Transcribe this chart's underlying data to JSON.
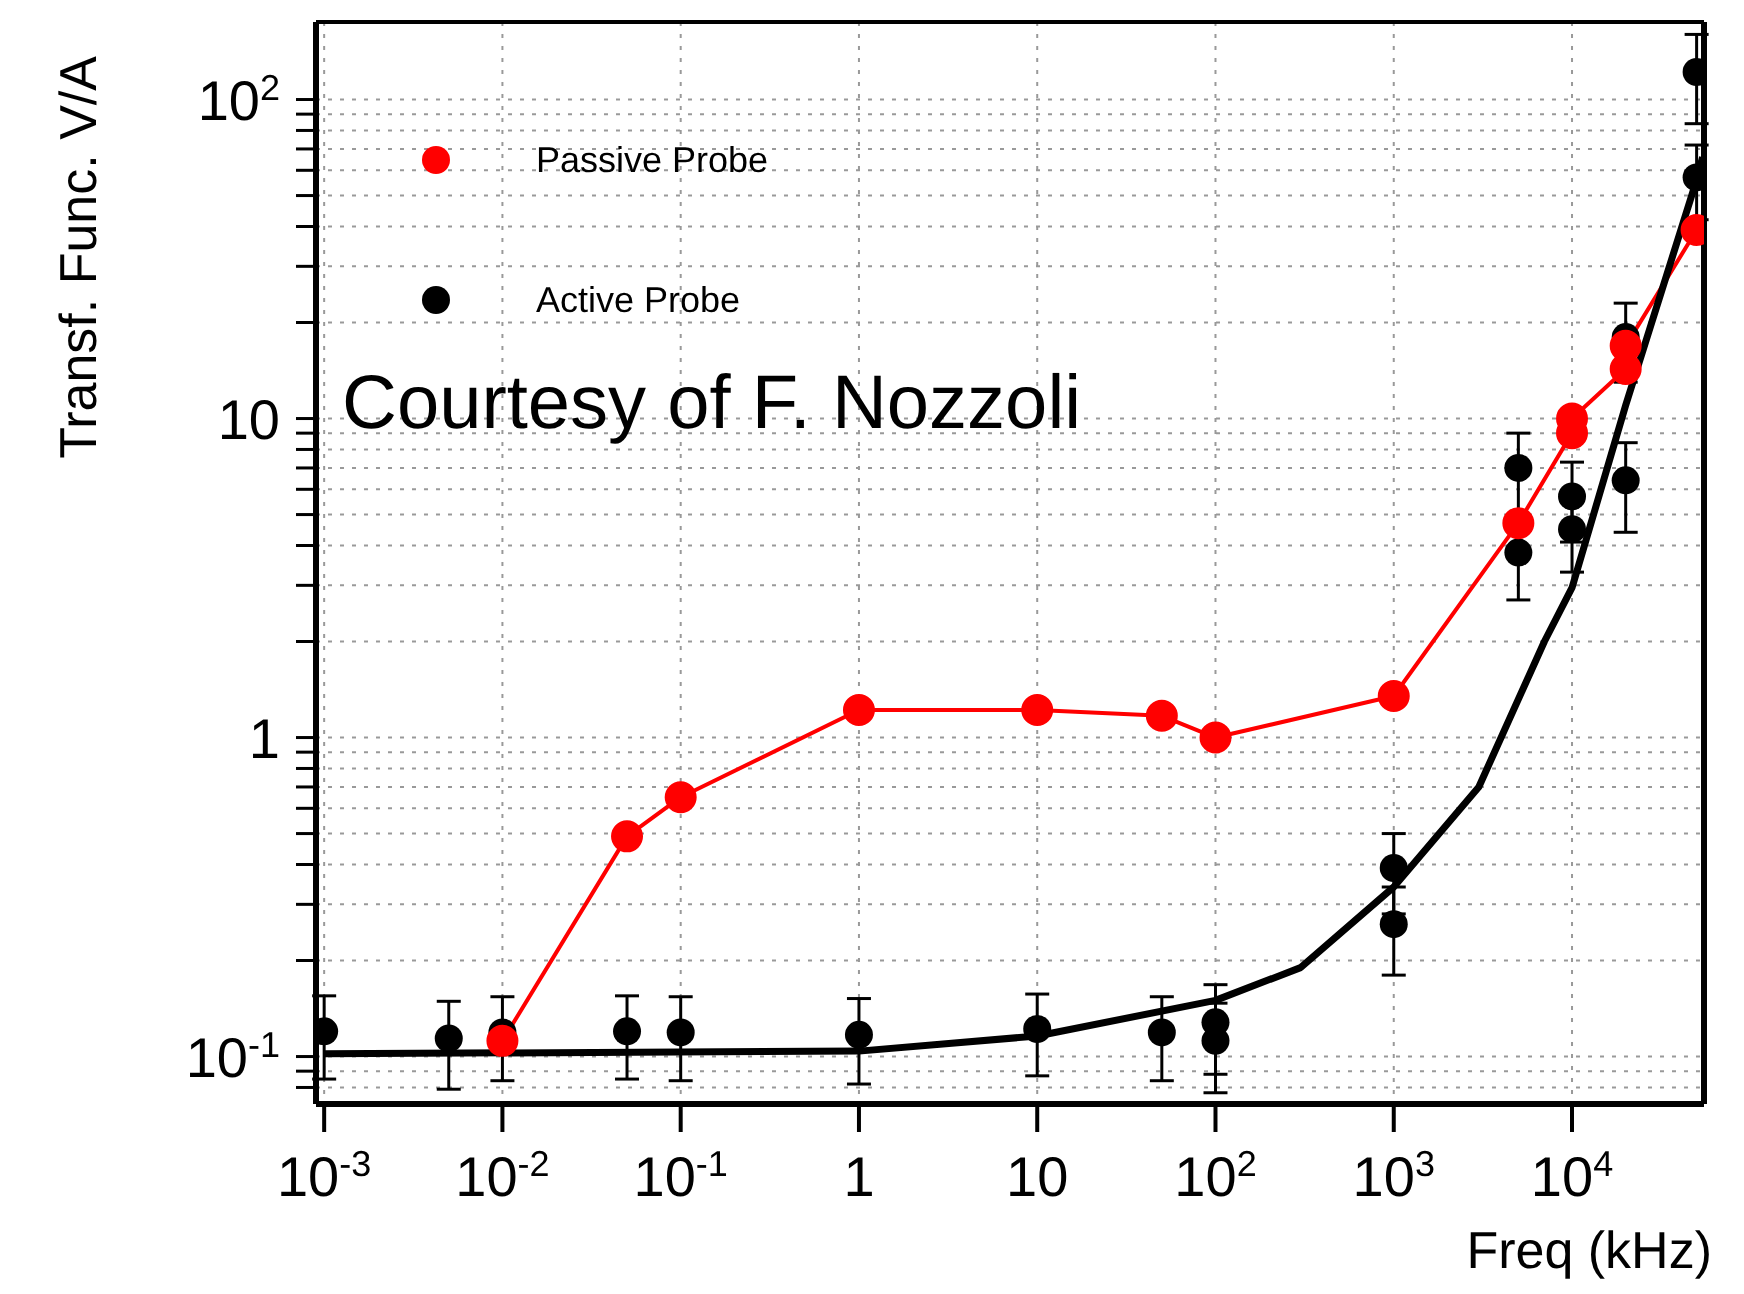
{
  "chart_data": {
    "type": "line",
    "xlabel": "Freq (kHz)",
    "ylabel": "Transf. Func. V/A",
    "annotations": [
      "Courtesy of F. Nozzoli"
    ],
    "log": "xy",
    "grid": true,
    "legend": "top left",
    "xlim": [
      0.0009,
      55000
    ],
    "ylim": [
      0.071,
      175
    ],
    "xticks": [
      {
        "value": 0.001,
        "label": "10$^{-3}$"
      },
      {
        "value": 0.01,
        "label": "10$^{-2}$"
      },
      {
        "value": 0.1,
        "label": "10$^{-1}$"
      },
      1,
      10,
      {
        "value": 100,
        "label": "10$^{2}$"
      },
      {
        "value": 1000,
        "label": "10$^{3}$"
      },
      {
        "value": 10000,
        "label": "10$^{4}$"
      }
    ],
    "yticks": [
      {
        "value": 0.08,
        "label": null
      },
      {
        "value": 0.09,
        "label": null
      },
      {
        "value": 0.1,
        "label": "10$^{-1}$"
      },
      {
        "value": 0.2,
        "label": null
      },
      {
        "value": 0.3,
        "label": null
      },
      {
        "value": 0.4,
        "label": null
      },
      {
        "value": 0.5,
        "label": null
      },
      {
        "value": 0.6,
        "label": null
      },
      {
        "value": 0.7,
        "label": null
      },
      {
        "value": 0.8,
        "label": null
      },
      {
        "value": 0.9,
        "label": null
      },
      1,
      {
        "value": 2,
        "label": null
      },
      {
        "value": 3,
        "label": null
      },
      {
        "value": 4,
        "label": null
      },
      {
        "value": 5,
        "label": null
      },
      {
        "value": 6,
        "label": null
      },
      {
        "value": 7,
        "label": null
      },
      {
        "value": 8,
        "label": null
      },
      {
        "value": 9,
        "label": null
      },
      10,
      {
        "value": 20,
        "label": null
      },
      {
        "value": 30,
        "label": null
      },
      {
        "value": 40,
        "label": null
      },
      {
        "value": 50,
        "label": null
      },
      {
        "value": 60,
        "label": null
      },
      {
        "value": 70,
        "label": null
      },
      {
        "value": 80,
        "label": null
      },
      {
        "value": 90,
        "label": null
      },
      {
        "value": 100,
        "label": "10$^{2}$"
      }
    ],
    "series": [
      {
        "name": "Passive Probe",
        "color": "#ff0000",
        "marker": "circle",
        "x": [
          0.01,
          0.05,
          0.1,
          1,
          10,
          50,
          100,
          1000,
          5000,
          10000,
          10000,
          20000,
          20000,
          50000
        ],
        "values": [
          0.112,
          0.49,
          0.65,
          1.22,
          1.22,
          1.17,
          1.0,
          1.35,
          4.7,
          9.0,
          10,
          14.3,
          16.9,
          39
        ]
      },
      {
        "name": "Active Probe",
        "type": "scatter",
        "color": "#000000",
        "marker": "circle",
        "x": [
          0.001,
          0.005,
          0.01,
          0.05,
          0.1,
          1,
          10,
          50,
          100,
          100,
          1000,
          1000,
          5000,
          5000,
          10000,
          10000,
          20000,
          20000,
          50000,
          50000
        ],
        "values": [
          0.12,
          0.114,
          0.119,
          0.12,
          0.119,
          0.117,
          0.122,
          0.119,
          0.128,
          0.112,
          0.39,
          0.26,
          7.0,
          3.8,
          5.7,
          4.5,
          18,
          6.4,
          122,
          57
        ],
        "errors": [
          0.035,
          0.035,
          0.035,
          0.035,
          0.035,
          0.035,
          0.035,
          0.035,
          0.04,
          0.035,
          0.11,
          0.08,
          2,
          1.1,
          1.6,
          1.2,
          5,
          2,
          38,
          15
        ]
      },
      {
        "type": "line",
        "color": "#000000",
        "marker": "none",
        "x": [
          0.001,
          1,
          10,
          100,
          300,
          1000,
          3000,
          7000,
          10000,
          20000,
          50000,
          54000
        ],
        "values": [
          0.102,
          0.104,
          0.116,
          0.15,
          0.19,
          0.34,
          0.7,
          2.0,
          2.95,
          11,
          56,
          66
        ]
      }
    ]
  }
}
